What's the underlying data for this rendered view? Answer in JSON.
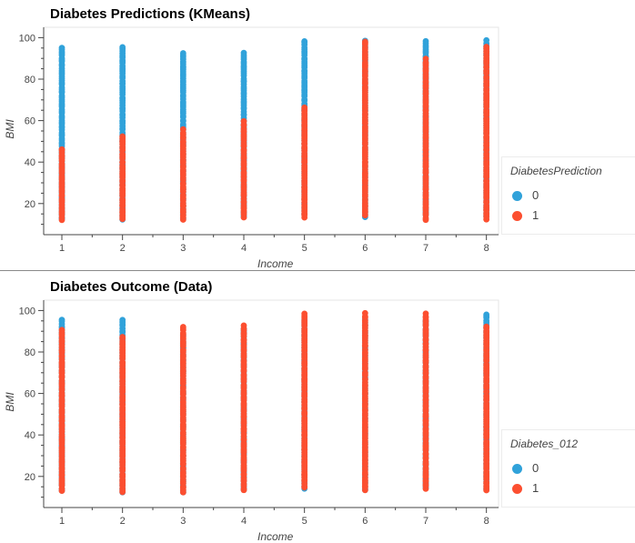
{
  "colors": {
    "class_0": "#30a2da",
    "class_1": "#fc4f30",
    "axis": "#444444"
  },
  "charts": [
    {
      "title": "Diabetes Predictions (KMeans)",
      "xlabel": "Income",
      "ylabel": "BMI",
      "legend": {
        "title": "DiabetesPrediction",
        "items": [
          "0",
          "1"
        ]
      }
    },
    {
      "title": "Diabetes Outcome (Data)",
      "xlabel": "Income",
      "ylabel": "BMI",
      "legend": {
        "title": "Diabetes_012",
        "items": [
          "0",
          "1"
        ]
      }
    }
  ],
  "chart_data": [
    {
      "type": "scatter",
      "title": "Diabetes Predictions (KMeans)",
      "xlabel": "Income",
      "ylabel": "BMI",
      "xlim": [
        0.7,
        8.2
      ],
      "ylim": [
        5,
        105
      ],
      "xticks": [
        1,
        2,
        3,
        4,
        5,
        6,
        7,
        8
      ],
      "yticks": [
        20,
        40,
        60,
        80,
        100
      ],
      "legend_title": "DiabetesPrediction",
      "legend_position": "right",
      "grid": false,
      "series": [
        {
          "name": "0",
          "color": "#30a2da",
          "ranges": [
            [
              1,
              12,
              95
            ],
            [
              2,
              12,
              95
            ],
            [
              3,
              12,
              92
            ],
            [
              4,
              13,
              92
            ],
            [
              5,
              14,
              98
            ],
            [
              6,
              13,
              98
            ],
            [
              7,
              14,
              98
            ],
            [
              8,
              13,
              98
            ]
          ]
        },
        {
          "name": "1",
          "color": "#fc4f30",
          "ranges": [
            [
              1,
              12,
              46
            ],
            [
              2,
              12,
              52
            ],
            [
              3,
              12,
              55
            ],
            [
              4,
              13,
              59
            ],
            [
              5,
              13,
              66
            ],
            [
              6,
              14,
              98
            ],
            [
              7,
              12,
              89
            ],
            [
              8,
              12,
              95
            ]
          ]
        }
      ]
    },
    {
      "type": "scatter",
      "title": "Diabetes Outcome (Data)",
      "xlabel": "Income",
      "ylabel": "BMI",
      "xlim": [
        0.7,
        8.2
      ],
      "ylim": [
        5,
        105
      ],
      "xticks": [
        1,
        2,
        3,
        4,
        5,
        6,
        7,
        8
      ],
      "yticks": [
        20,
        40,
        60,
        80,
        100
      ],
      "legend_title": "Diabetes_012",
      "legend_position": "right",
      "grid": false,
      "series": [
        {
          "name": "0",
          "color": "#30a2da",
          "ranges": [
            [
              1,
              13,
              95
            ],
            [
              2,
              12,
              95
            ],
            [
              3,
              12,
              88
            ],
            [
              4,
              13,
              91
            ],
            [
              5,
              14,
              95
            ],
            [
              6,
              13,
              95
            ],
            [
              7,
              14,
              95
            ],
            [
              8,
              13,
              98
            ]
          ]
        },
        {
          "name": "1",
          "color": "#fc4f30",
          "ranges": [
            [
              1,
              13,
              90
            ],
            [
              2,
              12,
              87
            ],
            [
              3,
              12,
              92
            ],
            [
              4,
              13,
              92
            ],
            [
              5,
              14,
              98
            ],
            [
              6,
              13,
              98
            ],
            [
              7,
              14,
              98
            ],
            [
              8,
              13,
              92
            ]
          ]
        }
      ]
    }
  ]
}
